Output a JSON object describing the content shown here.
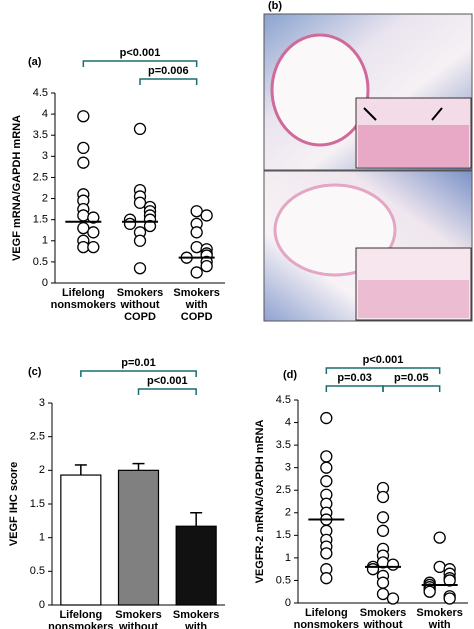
{
  "chart_data": [
    {
      "type": "strip",
      "label": "(a)",
      "ylabel": "VEGF mRNA/GAPDH mRNA",
      "categories": [
        "Lifelong nonsmokers",
        "Smokers without COPD",
        "Smokers with COPD"
      ],
      "groups": [
        [
          3.95,
          3.2,
          2.85,
          2.1,
          1.95,
          1.75,
          1.6,
          1.55,
          1.3,
          1.2,
          1.0,
          0.85,
          0.85
        ],
        [
          3.65,
          2.2,
          2.05,
          1.9,
          1.8,
          1.7,
          1.6,
          1.5,
          1.5,
          1.4,
          1.35,
          1.2,
          1.0,
          0.35
        ],
        [
          1.7,
          1.6,
          1.4,
          1.2,
          0.85,
          0.8,
          0.7,
          0.65,
          0.6,
          0.5,
          0.4,
          0.25
        ]
      ],
      "medians": [
        1.45,
        1.45,
        0.6
      ],
      "ylim": [
        0,
        4.5
      ],
      "yticks": [
        0,
        0.5,
        1,
        1.5,
        2,
        2.5,
        3,
        3.5,
        4,
        4.5
      ],
      "annotations": [
        {
          "text": "p<0.001",
          "from": 0,
          "to": 2
        },
        {
          "text": "p=0.006",
          "from": 1,
          "to": 2
        }
      ],
      "bracket_color": "#1a6e6e"
    },
    {
      "type": "image",
      "label": "(b)"
    },
    {
      "type": "bar",
      "label": "(c)",
      "ylabel": "VEGF IHC score",
      "categories": [
        "Lifelong nonsmokers",
        "Smokers without COPD",
        "Smokers with COPD"
      ],
      "values": [
        1.93,
        2.0,
        1.17
      ],
      "errors": [
        0.15,
        0.1,
        0.2
      ],
      "colors": [
        "#ffffff",
        "#808080",
        "#111111"
      ],
      "ylim": [
        0,
        3
      ],
      "yticks": [
        0,
        0.5,
        1,
        1.5,
        2,
        2.5,
        3
      ],
      "annotations": [
        {
          "text": "p=0.01",
          "from": 0,
          "to": 2
        },
        {
          "text": "p<0.001",
          "from": 1,
          "to": 2
        }
      ],
      "bracket_color": "#1a6e6e"
    },
    {
      "type": "strip",
      "label": "(d)",
      "ylabel": "VEGFR-2 mRNA/GAPDH mRNA",
      "categories": [
        "Lifelong nonsmokers",
        "Smokers without COPD",
        "Smokers with COPD"
      ],
      "groups": [
        [
          4.1,
          3.25,
          3.0,
          2.7,
          2.4,
          2.2,
          2.0,
          1.85,
          1.6,
          1.4,
          1.25,
          1.1,
          0.75,
          0.55
        ],
        [
          2.55,
          2.35,
          1.9,
          1.6,
          1.2,
          1.05,
          0.9,
          0.85,
          0.8,
          0.75,
          0.6,
          0.45,
          0.2,
          0.1
        ],
        [
          1.45,
          0.8,
          0.75,
          0.65,
          0.55,
          0.5,
          0.45,
          0.4,
          0.35,
          0.3,
          0.25,
          0.15,
          0.1
        ]
      ],
      "medians": [
        1.85,
        0.8,
        0.4
      ],
      "ylim": [
        0,
        4.5
      ],
      "yticks": [
        0,
        0.5,
        1,
        1.5,
        2,
        2.5,
        3,
        3.5,
        4,
        4.5
      ],
      "annotations": [
        {
          "text": "p<0.001",
          "from": 0,
          "to": 2
        },
        {
          "text": "p=0.03",
          "from": 0,
          "to": 1
        },
        {
          "text": "p=0.05",
          "from": 1,
          "to": 2
        }
      ],
      "bracket_color": "#1a6e6e"
    }
  ]
}
